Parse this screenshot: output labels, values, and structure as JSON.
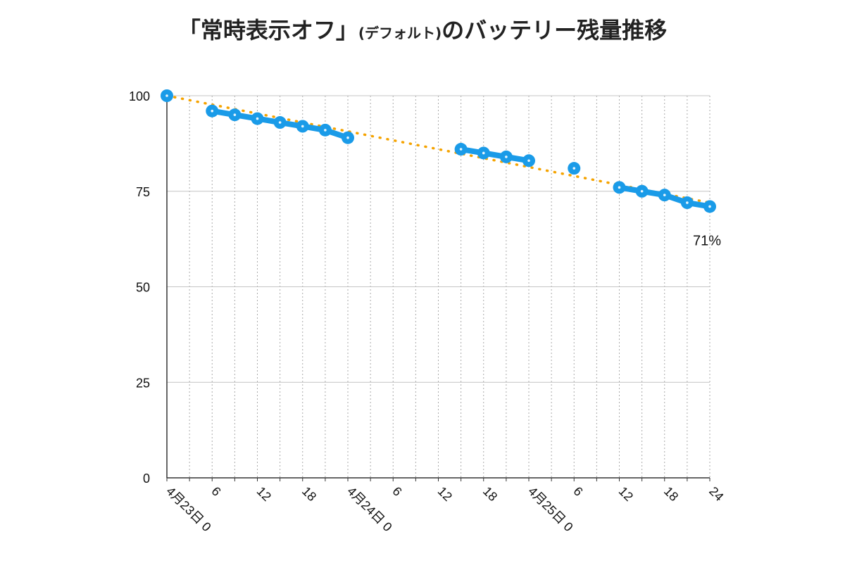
{
  "title": {
    "part1": "「常時表示オフ」",
    "part2": "(デフォルト)",
    "part3": "のバッテリー残量推移"
  },
  "chart_data": {
    "type": "line",
    "title": "「常時表示オフ」(デフォルト)のバッテリー残量推移",
    "xlabel": "",
    "ylabel": "",
    "xlim": [
      0,
      72
    ],
    "ylim": [
      0,
      100
    ],
    "y_ticks": [
      0,
      25,
      50,
      75,
      100
    ],
    "x_ticks": [
      {
        "x": 0,
        "label": "4月23日 0"
      },
      {
        "x": 6,
        "label": "6"
      },
      {
        "x": 12,
        "label": "12"
      },
      {
        "x": 18,
        "label": "18"
      },
      {
        "x": 24,
        "label": "4月24日 0"
      },
      {
        "x": 30,
        "label": "6"
      },
      {
        "x": 36,
        "label": "12"
      },
      {
        "x": 42,
        "label": "18"
      },
      {
        "x": 48,
        "label": "4月25日 0"
      },
      {
        "x": 54,
        "label": "6"
      },
      {
        "x": 60,
        "label": "12"
      },
      {
        "x": 66,
        "label": "18"
      },
      {
        "x": 72,
        "label": "24"
      }
    ],
    "grid": true,
    "series": [
      {
        "color": "#1a9be8",
        "segments": [
          [
            [
              0,
              100
            ]
          ],
          [
            [
              6,
              96
            ],
            [
              9,
              95
            ],
            [
              12,
              94
            ],
            [
              15,
              93
            ],
            [
              18,
              92
            ],
            [
              21,
              91
            ],
            [
              24,
              89
            ]
          ],
          [
            [
              39,
              86
            ],
            [
              42,
              85
            ],
            [
              45,
              84
            ],
            [
              48,
              83
            ]
          ],
          [
            [
              54,
              81
            ]
          ],
          [
            [
              60,
              76
            ],
            [
              63,
              75
            ],
            [
              66,
              74
            ],
            [
              69,
              72
            ],
            [
              72,
              71
            ]
          ]
        ]
      }
    ],
    "trendline": {
      "color": "#f5a300",
      "points": [
        [
          0,
          100
        ],
        [
          72,
          72
        ]
      ]
    },
    "annotations": [
      {
        "x": 72,
        "y": 71,
        "text": "71%"
      }
    ]
  }
}
